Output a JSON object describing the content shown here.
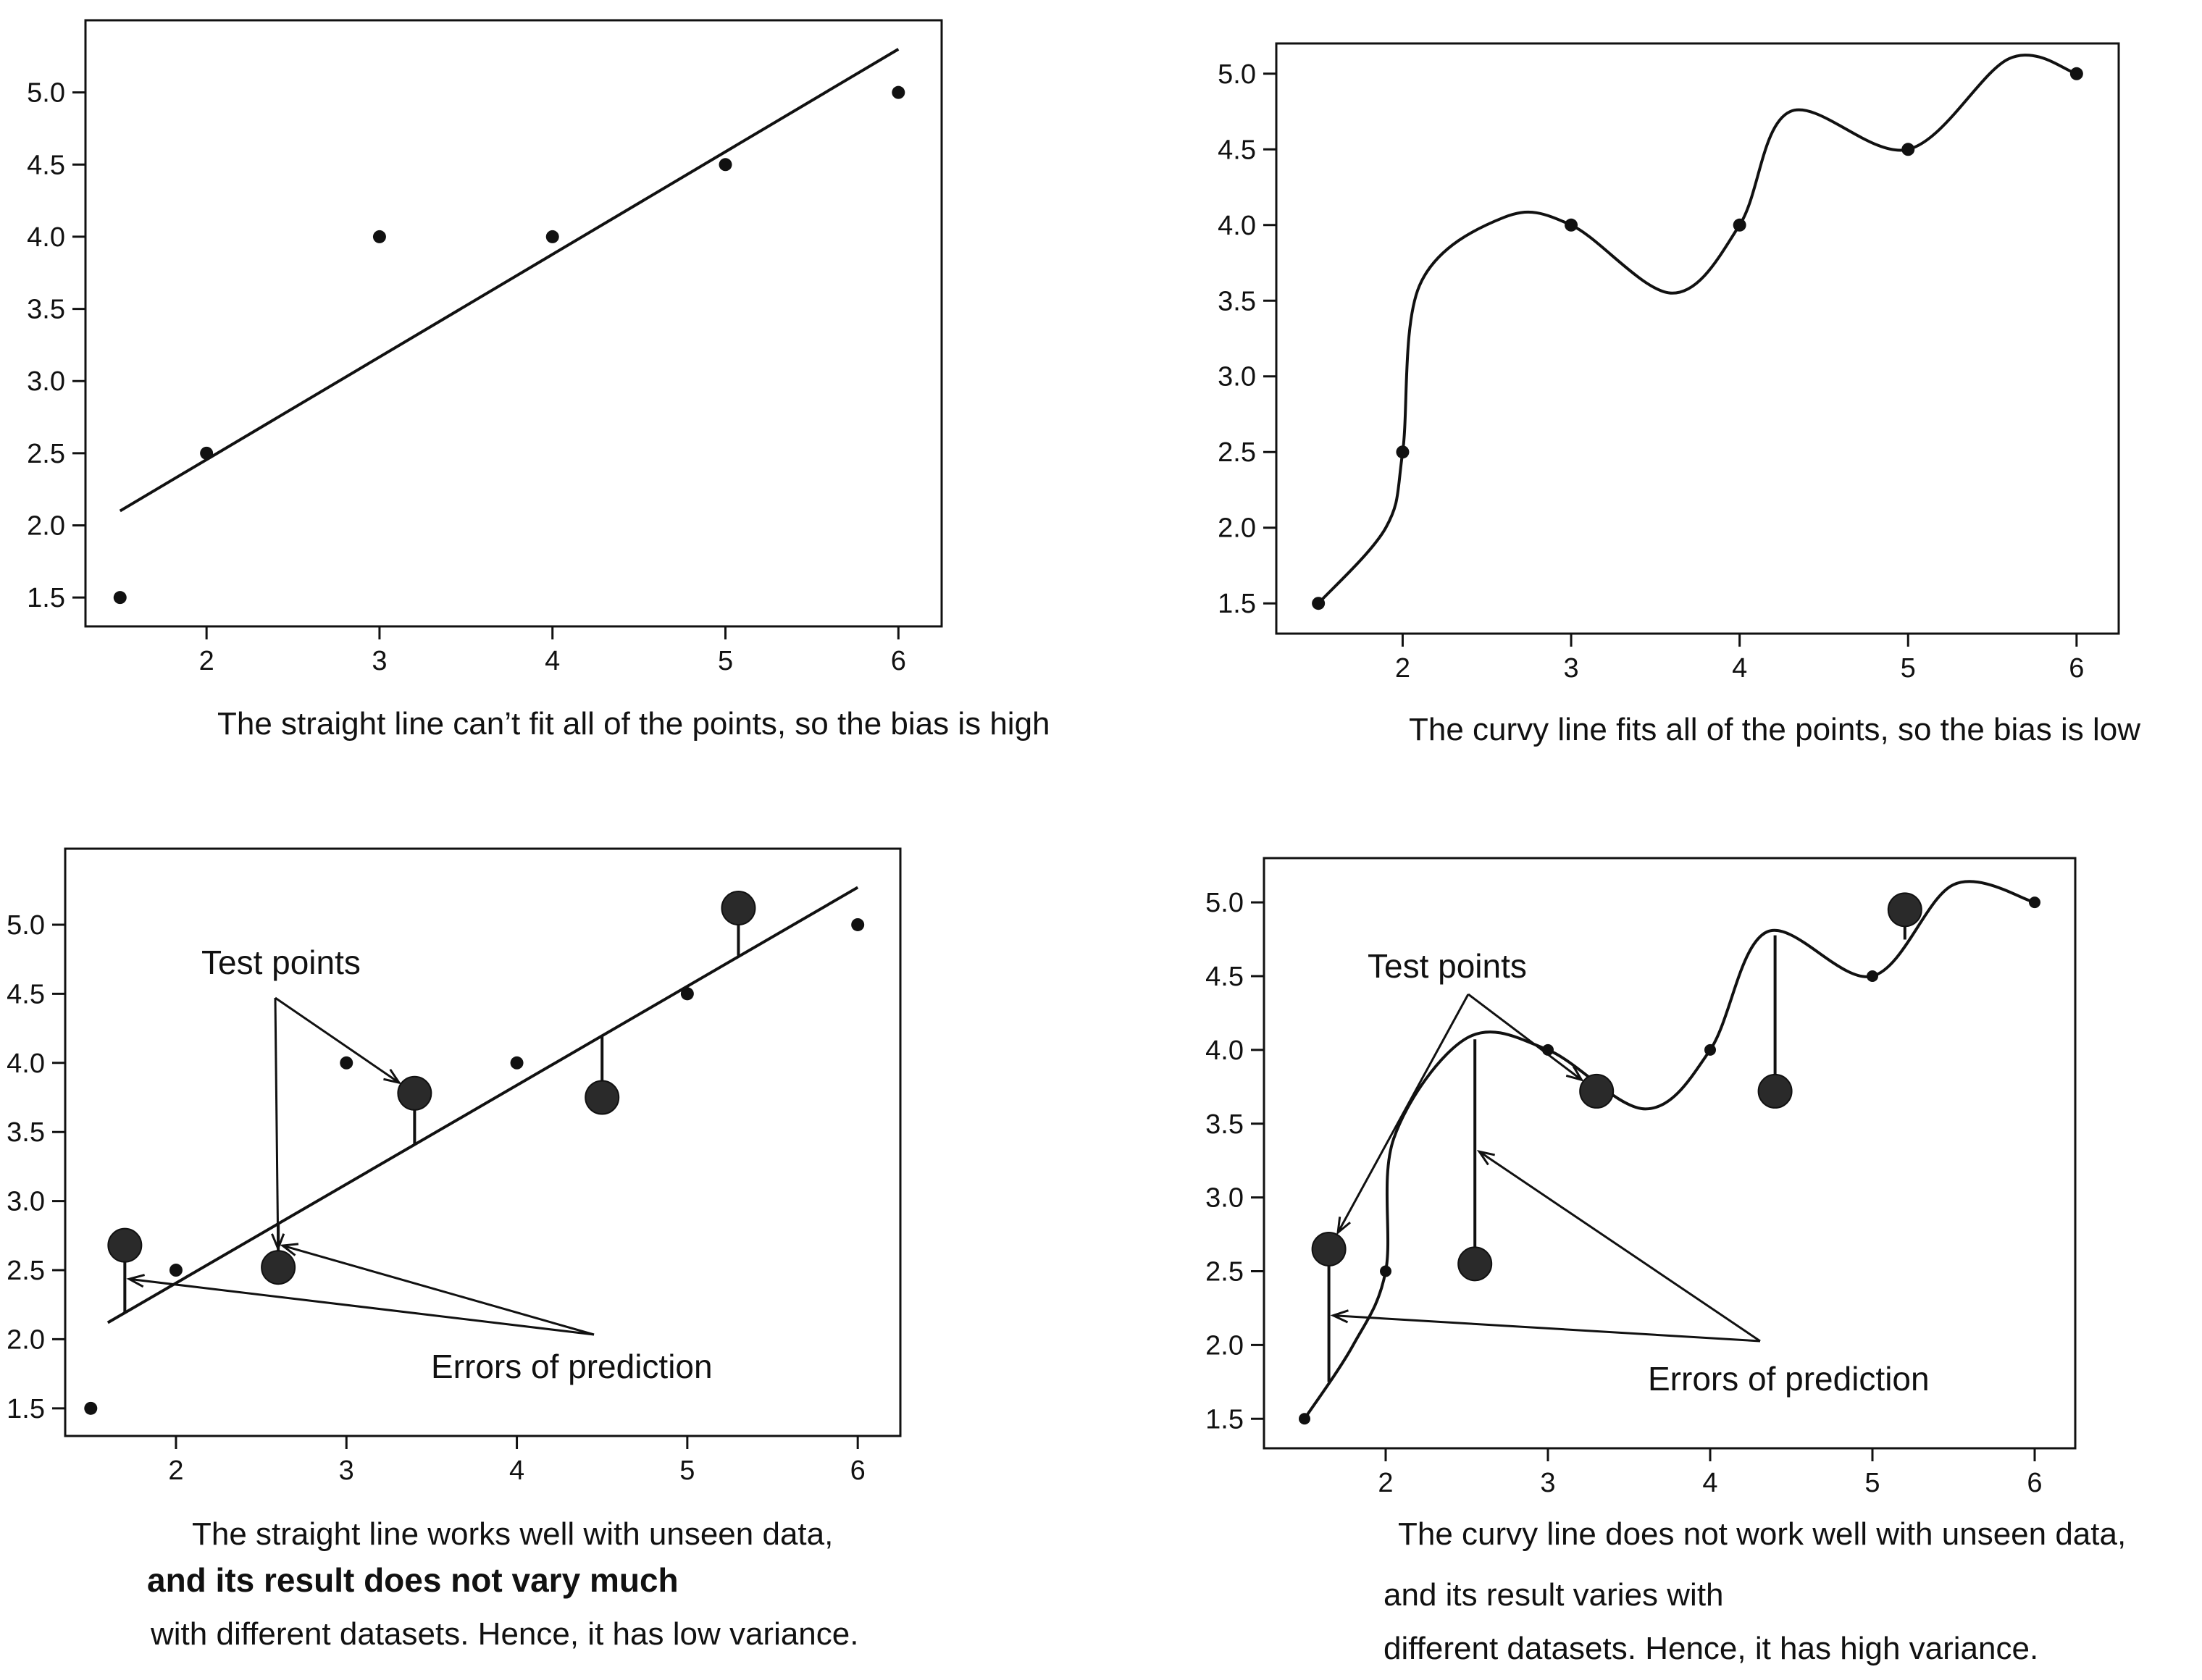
{
  "chart_data": [
    {
      "type": "scatter",
      "title": "",
      "xlabel": "",
      "ylabel": "",
      "xlim": [
        1.3,
        6.25
      ],
      "ylim": [
        1.3,
        5.5
      ],
      "x_ticks": [
        "2",
        "3",
        "4",
        "5",
        "6"
      ],
      "y_ticks": [
        "1.5",
        "2.0",
        "2.5",
        "3.0",
        "3.5",
        "4.0",
        "4.5",
        "5.0"
      ],
      "grid": false,
      "series": [
        {
          "role": "training",
          "x": [
            1.5,
            2,
            3,
            4,
            5,
            6
          ],
          "y": [
            1.5,
            2.5,
            4.0,
            4.0,
            4.5,
            5.0
          ]
        },
        {
          "role": "fit",
          "shape": "straight",
          "x": [
            1.5,
            6
          ],
          "y": [
            2.1,
            5.3
          ]
        }
      ],
      "annotations": [],
      "caption": [
        "The straight line can’t fit all of the points, so the bias is high"
      ]
    },
    {
      "type": "scatter",
      "title": "",
      "xlabel": "",
      "ylabel": "",
      "xlim": [
        1.25,
        6.25
      ],
      "ylim": [
        1.3,
        5.2
      ],
      "x_ticks": [
        "2",
        "3",
        "4",
        "5",
        "6"
      ],
      "y_ticks": [
        "1.5",
        "2.0",
        "2.5",
        "3.0",
        "3.5",
        "4.0",
        "4.5",
        "5.0"
      ],
      "grid": false,
      "series": [
        {
          "role": "training",
          "x": [
            1.5,
            2,
            3,
            4,
            5,
            6
          ],
          "y": [
            1.5,
            2.5,
            4.0,
            4.0,
            4.5,
            5.0
          ]
        },
        {
          "role": "fit",
          "shape": "curve",
          "x": [
            1.5,
            1.9,
            2.0,
            2.1,
            2.6,
            3.0,
            3.6,
            4.0,
            4.3,
            5.0,
            5.6,
            6.0
          ],
          "y": [
            1.5,
            2.0,
            2.5,
            3.6,
            4.05,
            4.0,
            3.55,
            4.0,
            4.75,
            4.5,
            5.1,
            5.0
          ]
        }
      ],
      "annotations": [],
      "caption": [
        "The curvy line fits all of the points, so the bias is low"
      ]
    },
    {
      "type": "scatter",
      "title": "",
      "xlabel": "",
      "ylabel": "",
      "xlim": [
        1.35,
        6.25
      ],
      "ylim": [
        1.3,
        5.55
      ],
      "x_ticks": [
        "2",
        "3",
        "4",
        "5",
        "6"
      ],
      "y_ticks": [
        "1.5",
        "2.0",
        "2.5",
        "3.0",
        "3.5",
        "4.0",
        "4.5",
        "5.0"
      ],
      "grid": false,
      "series": [
        {
          "role": "training",
          "x": [
            1.5,
            2,
            3,
            4,
            5,
            6
          ],
          "y": [
            1.5,
            2.5,
            4.0,
            4.0,
            4.5,
            5.0
          ]
        },
        {
          "role": "test",
          "x": [
            1.7,
            2.6,
            3.4,
            4.5,
            5.3
          ],
          "y": [
            2.68,
            2.52,
            3.78,
            3.75,
            5.12
          ]
        },
        {
          "role": "fit",
          "shape": "straight",
          "x": [
            1.6,
            6.0
          ],
          "y": [
            2.12,
            5.27
          ]
        }
      ],
      "annotations": [
        "Test points",
        "Errors of prediction"
      ],
      "caption": [
        "The straight line works well with unseen data,",
        "and its result does not vary much",
        "with different datasets. Hence, it has low variance."
      ]
    },
    {
      "type": "scatter",
      "title": "",
      "xlabel": "",
      "ylabel": "",
      "xlim": [
        1.25,
        6.25
      ],
      "ylim": [
        1.3,
        5.3
      ],
      "x_ticks": [
        "2",
        "3",
        "4",
        "5",
        "6"
      ],
      "y_ticks": [
        "1.5",
        "2.0",
        "2.5",
        "3.0",
        "3.5",
        "4.0",
        "4.5",
        "5.0"
      ],
      "grid": false,
      "series": [
        {
          "role": "training",
          "x": [
            1.5,
            2,
            3,
            4,
            5,
            6
          ],
          "y": [
            1.5,
            2.5,
            4.0,
            4.0,
            4.5,
            5.0
          ]
        },
        {
          "role": "test",
          "x": [
            1.65,
            2.55,
            3.3,
            4.4,
            5.2
          ],
          "y": [
            2.65,
            2.55,
            3.72,
            3.72,
            4.95
          ]
        },
        {
          "role": "fit",
          "shape": "curve",
          "x": [
            1.5,
            1.8,
            2.0,
            2.05,
            2.5,
            3.0,
            3.6,
            4.0,
            4.35,
            5.0,
            5.5,
            6.0
          ],
          "y": [
            1.5,
            2.0,
            2.5,
            3.4,
            4.08,
            4.0,
            3.6,
            4.0,
            4.8,
            4.5,
            5.12,
            5.0
          ]
        }
      ],
      "annotations": [
        "Test points",
        "Errors of prediction"
      ],
      "caption": [
        "The curvy line does not work well with unseen data,",
        "and its result varies with",
        "different datasets. Hence, it has high variance."
      ]
    }
  ]
}
